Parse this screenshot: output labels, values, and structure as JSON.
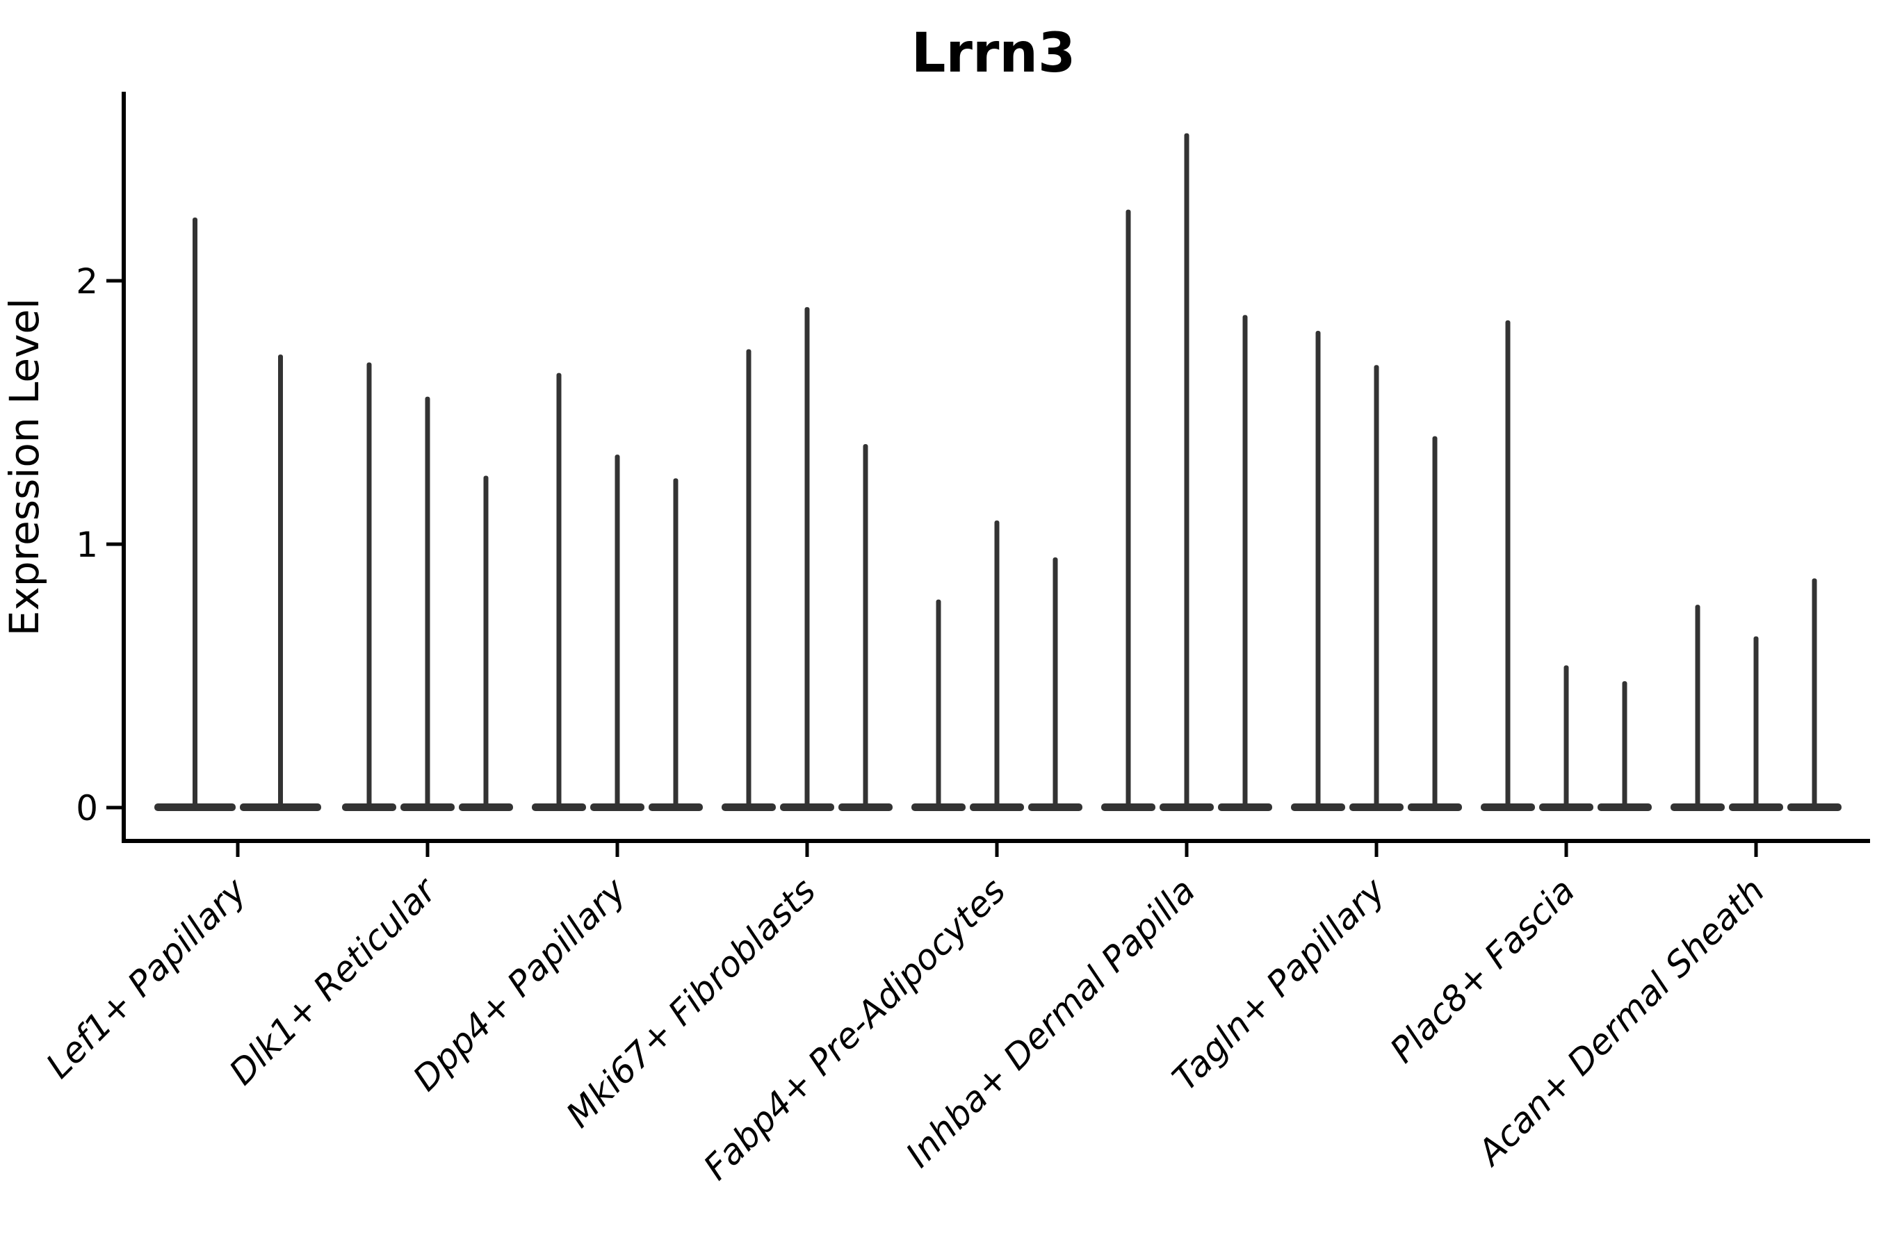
{
  "title": "Lrrn3",
  "axes": {
    "ylabel": "Expression Level",
    "xlabel": ""
  },
  "chart_data": {
    "type": "bar",
    "plot_style": "violin-spike",
    "title": "Lrrn3",
    "xlabel": "",
    "ylabel": "Expression Level",
    "ylim": [
      -0.13,
      2.77
    ],
    "yticks": [
      0,
      1,
      2
    ],
    "grid": false,
    "legend": false,
    "violin_color": "#333333",
    "axis_color": "#000000",
    "categories": [
      "Lef1+ Papillary",
      "Dlk1+ Reticular",
      "Dpp4+ Papillary",
      "Mki67+ Fibroblasts",
      "Fabp4+ Pre-Adipocytes",
      "Inhba+ Dermal Papilla",
      "Tagln+ Papillary",
      "Plac8+ Fascia",
      "Acan+ Dermal Sheath"
    ],
    "groups": [
      {
        "label": "Lef1+ Papillary",
        "values": [
          2.24,
          1.72
        ]
      },
      {
        "label": "Dlk1+ Reticular",
        "values": [
          1.69,
          1.56,
          1.26
        ]
      },
      {
        "label": "Dpp4+ Papillary",
        "values": [
          1.65,
          1.34,
          1.25
        ]
      },
      {
        "label": "Mki67+ Fibroblasts",
        "values": [
          1.74,
          1.9,
          1.38
        ]
      },
      {
        "label": "Fabp4+ Pre-Adipocytes",
        "values": [
          0.79,
          1.09,
          0.95
        ]
      },
      {
        "label": "Inhba+ Dermal Papilla",
        "values": [
          2.27,
          2.56,
          1.87
        ]
      },
      {
        "label": "Tagln+ Papillary",
        "values": [
          1.81,
          1.68,
          1.41
        ]
      },
      {
        "label": "Plac8+ Fascia",
        "values": [
          1.85,
          0.54,
          0.48
        ]
      },
      {
        "label": "Acan+ Dermal Sheath",
        "values": [
          0.77,
          0.65,
          0.87
        ]
      }
    ]
  }
}
